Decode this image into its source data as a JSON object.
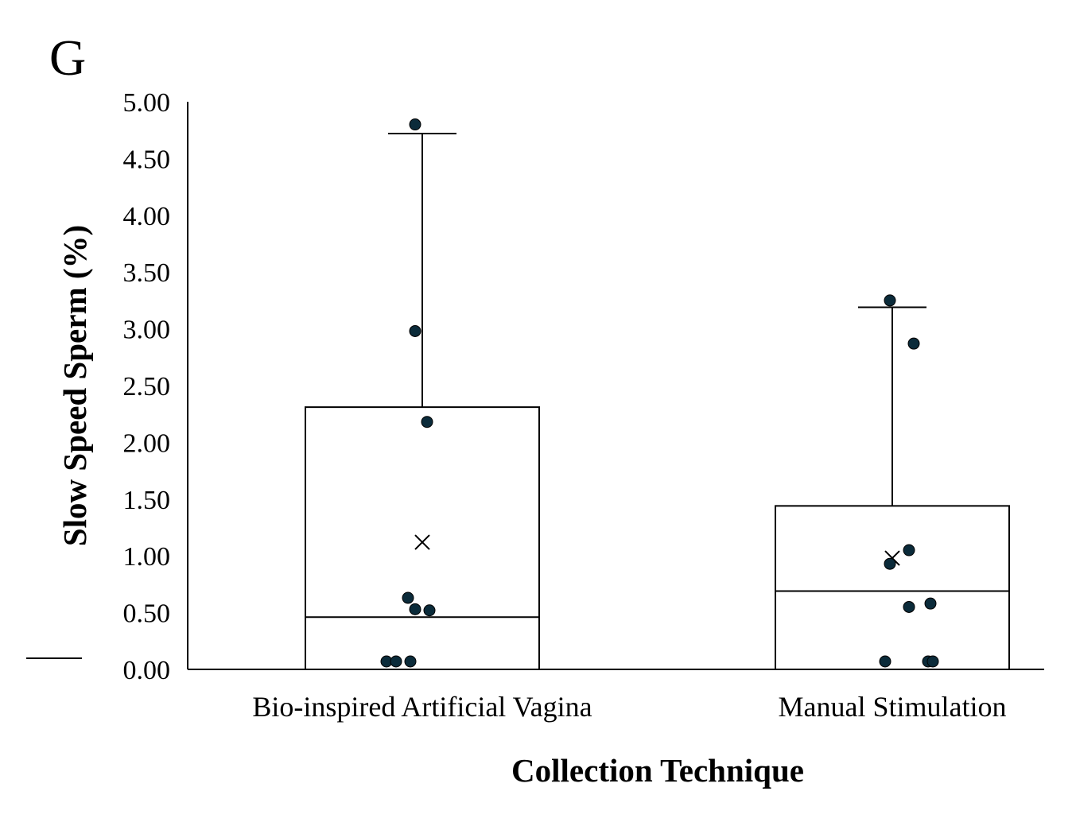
{
  "panel_label": "G",
  "chart_data": {
    "type": "box",
    "title": "",
    "xlabel": "Collection Technique",
    "ylabel": "Slow Speed Sperm (%)",
    "ylim": [
      0,
      5
    ],
    "yticks": [
      "0.00",
      "0.50",
      "1.00",
      "1.50",
      "2.00",
      "2.50",
      "3.00",
      "3.50",
      "4.00",
      "4.50",
      "5.00"
    ],
    "grid": false,
    "legend": "none",
    "categories": [
      "Bio-inspired Artificial Vagina",
      "Manual Stimulation"
    ],
    "series": [
      {
        "category": "Bio-inspired Artificial Vagina",
        "q1": 0.0,
        "median": 0.46,
        "q3": 2.31,
        "whisker_low": 0.0,
        "whisker_high": 4.72,
        "mean": 1.12,
        "points": [
          {
            "x": -0.15,
            "y": 0.07
          },
          {
            "x": -0.11,
            "y": 0.07
          },
          {
            "x": -0.05,
            "y": 0.07
          },
          {
            "x": -0.06,
            "y": 0.63
          },
          {
            "x": -0.03,
            "y": 0.53
          },
          {
            "x": 0.03,
            "y": 0.52
          },
          {
            "x": 0.02,
            "y": 2.18
          },
          {
            "x": -0.03,
            "y": 2.98
          },
          {
            "x": -0.03,
            "y": 4.8
          }
        ]
      },
      {
        "category": "Manual Stimulation",
        "q1": 0.0,
        "median": 0.69,
        "q3": 1.44,
        "whisker_low": 0.0,
        "whisker_high": 3.19,
        "mean": 0.98,
        "points": [
          {
            "x": -0.03,
            "y": 0.07
          },
          {
            "x": 0.15,
            "y": 0.07
          },
          {
            "x": 0.17,
            "y": 0.07
          },
          {
            "x": 0.07,
            "y": 0.55
          },
          {
            "x": 0.16,
            "y": 0.58
          },
          {
            "x": -0.01,
            "y": 0.93
          },
          {
            "x": 0.07,
            "y": 1.05
          },
          {
            "x": 0.09,
            "y": 2.87
          },
          {
            "x": -0.01,
            "y": 3.25
          }
        ]
      }
    ],
    "colors": {
      "box_stroke": "#000000",
      "box_fill": "#ffffff",
      "point_fill": "#0b2b3a",
      "point_stroke": "#000000",
      "mean_marker": "#000000"
    }
  }
}
